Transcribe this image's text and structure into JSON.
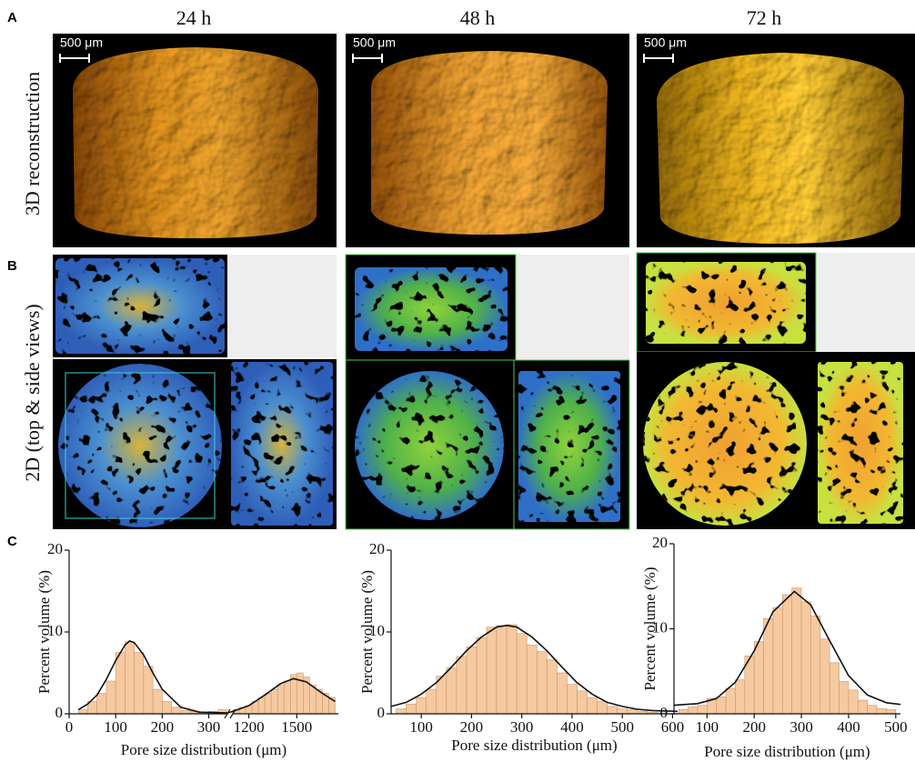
{
  "figure": {
    "panel_labels": [
      "A",
      "B",
      "C"
    ],
    "columns": [
      "24 h",
      "48 h",
      "72 h"
    ],
    "row_labels": [
      "3D reconstruction",
      "2D (top & side views)"
    ],
    "scale_bars": [
      "500 μm",
      "500 μm",
      "500 μm"
    ]
  },
  "chart_data": [
    {
      "type": "histogram",
      "color": "#f6c9a0",
      "edge_color": "#c9976e",
      "fit_color": "#111111",
      "x_label": "Pore size distribution (μm)",
      "y_label": "Percent volume (%)",
      "bins": [
        20,
        40,
        60,
        80,
        100,
        120,
        140,
        160,
        180,
        200,
        220,
        240,
        260,
        280,
        300,
        320,
        340,
        1100,
        1140,
        1180,
        1220,
        1260,
        1300,
        1340,
        1380,
        1420,
        1460,
        1500,
        1540,
        1580,
        1620,
        1660,
        1700,
        1740
      ],
      "values": [
        0.5,
        1.5,
        2.5,
        4,
        7.5,
        8.8,
        7.5,
        5.8,
        3,
        1.5,
        0.8,
        0.4,
        0.3,
        0.2,
        0.3,
        0.5,
        null,
        0.5,
        0.8,
        1,
        1.5,
        2,
        2.5,
        3,
        3.5,
        4,
        4.8,
        5,
        4.5,
        3.5,
        3,
        2.5,
        2
      ],
      "fit": {
        "x": [
          20,
          40,
          60,
          80,
          100,
          120,
          130,
          140,
          160,
          180,
          200,
          240,
          280,
          340,
          1100,
          1200,
          1300,
          1400,
          1480,
          1560,
          1660,
          1740
        ],
        "values": [
          0.5,
          1.2,
          2.3,
          4.2,
          6.5,
          8.4,
          8.9,
          8.7,
          7.2,
          5,
          3,
          0.8,
          0.2,
          0.1,
          0.3,
          1,
          2.3,
          3.7,
          4.3,
          3.9,
          2.5,
          1.5
        ]
      },
      "xlim": [
        0,
        1760
      ],
      "xbreak": [
        340,
        1100
      ],
      "xticks": [
        0,
        100,
        200,
        300,
        1200,
        1500
      ],
      "ylim": [
        0,
        20
      ],
      "yticks": [
        0,
        10,
        20
      ]
    },
    {
      "type": "histogram",
      "color": "#f6c9a0",
      "edge_color": "#c9976e",
      "fit_color": "#111111",
      "x_label": "Pore size distribution (μm)",
      "y_label": "Percent volume (%)",
      "bins": [
        50,
        70,
        90,
        110,
        130,
        150,
        170,
        190,
        210,
        230,
        250,
        270,
        290,
        310,
        330,
        350,
        370,
        390,
        410,
        430,
        450,
        470,
        490,
        510,
        530,
        550,
        570,
        590
      ],
      "values": [
        0.6,
        1.2,
        2,
        3,
        4.6,
        5.6,
        7,
        8.2,
        9.3,
        10.6,
        10.8,
        10.9,
        9.8,
        8.4,
        7.6,
        6.6,
        5,
        3.6,
        2.8,
        2,
        1.5,
        0.9,
        0.6,
        0.5,
        0.3,
        0.2,
        0.1
      ],
      "fit": {
        "x": [
          40,
          70,
          100,
          130,
          160,
          190,
          220,
          250,
          270,
          290,
          320,
          350,
          380,
          410,
          440,
          470,
          500,
          530,
          560,
          610
        ],
        "values": [
          0.9,
          1.4,
          2.4,
          3.8,
          5.7,
          7.7,
          9.4,
          10.6,
          10.8,
          10.6,
          9.4,
          7.7,
          5.7,
          3.8,
          2.4,
          1.4,
          0.9,
          0.55,
          0.4,
          0.3
        ]
      },
      "xlim": [
        40,
        610
      ],
      "xticks": [
        100,
        200,
        300,
        400,
        500,
        600
      ],
      "ylim": [
        0,
        20
      ],
      "yticks": [
        0,
        10,
        20
      ]
    },
    {
      "type": "histogram",
      "color": "#f6c9a0",
      "edge_color": "#c9976e",
      "fit_color": "#111111",
      "x_label": "Pore size distribution (μm)",
      "y_label": "Percent volume (%)",
      "bins": [
        40,
        60,
        80,
        100,
        120,
        140,
        160,
        180,
        200,
        220,
        240,
        260,
        280,
        300,
        320,
        340,
        360,
        380,
        400,
        420,
        440,
        460,
        480,
        500
      ],
      "values": [
        0.5,
        0.8,
        1,
        1.8,
        2,
        3,
        4,
        6.8,
        8.5,
        11.2,
        12.5,
        14,
        14.8,
        13.2,
        11.5,
        8.8,
        6,
        3.8,
        2.8,
        1.6,
        1,
        0.6,
        0.5
      ],
      "fit": {
        "x": [
          30,
          80,
          120,
          160,
          200,
          240,
          285,
          320,
          360,
          400,
          440,
          480,
          510
        ],
        "values": [
          1,
          1.2,
          1.8,
          3.7,
          7.4,
          12,
          14.4,
          12.8,
          8.6,
          4.5,
          2.2,
          1.3,
          1.1
        ]
      },
      "xlim": [
        30,
        510
      ],
      "xticks": [
        100,
        200,
        300,
        400,
        500
      ],
      "ylim": [
        0,
        20
      ],
      "yticks": [
        0,
        10,
        20
      ]
    }
  ]
}
